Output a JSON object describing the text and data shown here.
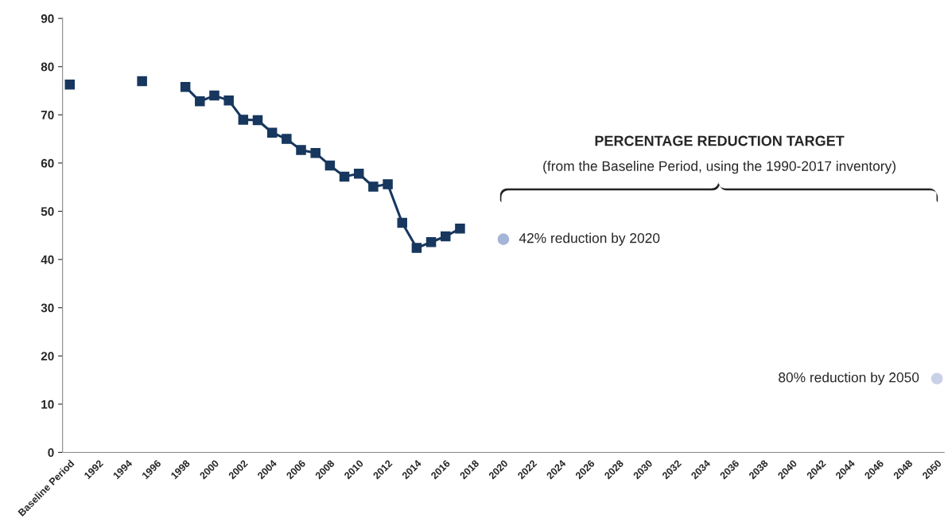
{
  "chart_data": {
    "type": "line",
    "categories": [
      "Baseline Period",
      null,
      "1992",
      null,
      "1994",
      null,
      "1996",
      null,
      "1998",
      null,
      "2000",
      null,
      "2002",
      null,
      "2004",
      null,
      "2006",
      null,
      "2008",
      null,
      "2010",
      null,
      "2012",
      null,
      "2014",
      null,
      "2016",
      null,
      "2018",
      null,
      "2020",
      null,
      "2022",
      null,
      "2024",
      null,
      "2026",
      null,
      "2028",
      null,
      "2030",
      null,
      "2032",
      null,
      "2034",
      null,
      "2036",
      null,
      "2038",
      null,
      "2040",
      null,
      "2042",
      null,
      "2044",
      null,
      "2046",
      null,
      "2048",
      null,
      "2050"
    ],
    "series": [
      {
        "color": "#17375e",
        "marker": "square",
        "values": [
          76.3,
          null,
          null,
          null,
          null,
          77.0,
          null,
          null,
          75.8,
          72.8,
          74.0,
          73.0,
          69.0,
          68.9,
          66.3,
          65.0,
          62.7,
          62.1,
          59.5,
          57.2,
          57.8,
          55.1,
          55.6,
          47.6,
          42.4,
          43.6,
          44.8,
          46.4,
          null,
          null,
          null,
          null,
          null,
          null,
          null,
          null,
          null,
          null,
          null,
          null,
          null,
          null,
          null,
          null,
          null,
          null,
          null,
          null,
          null,
          null,
          null,
          null,
          null,
          null,
          null,
          null,
          null,
          null,
          null,
          null,
          null
        ]
      },
      {
        "type": "scatter",
        "color": "#a5b5d8",
        "marker": "circle",
        "values": [
          null,
          null,
          null,
          null,
          null,
          null,
          null,
          null,
          null,
          null,
          null,
          null,
          null,
          null,
          null,
          null,
          null,
          null,
          null,
          null,
          null,
          null,
          null,
          null,
          null,
          null,
          null,
          null,
          null,
          null,
          44.2,
          null,
          null,
          null,
          null,
          null,
          null,
          null,
          null,
          null,
          null,
          null,
          null,
          null,
          null,
          null,
          null,
          null,
          null,
          null,
          null,
          null,
          null,
          null,
          null,
          null,
          null,
          null,
          null,
          null,
          null
        ]
      },
      {
        "type": "scatter",
        "color": "#c9d1e8",
        "marker": "circle",
        "values": [
          null,
          null,
          null,
          null,
          null,
          null,
          null,
          null,
          null,
          null,
          null,
          null,
          null,
          null,
          null,
          null,
          null,
          null,
          null,
          null,
          null,
          null,
          null,
          null,
          null,
          null,
          null,
          null,
          null,
          null,
          null,
          null,
          null,
          null,
          null,
          null,
          null,
          null,
          null,
          null,
          null,
          null,
          null,
          null,
          null,
          null,
          null,
          null,
          null,
          null,
          null,
          null,
          null,
          null,
          null,
          null,
          null,
          null,
          null,
          null,
          15.3
        ]
      }
    ],
    "ylim": [
      0,
      90
    ],
    "yticks": [
      0,
      10,
      20,
      30,
      40,
      50,
      60,
      70,
      80,
      90
    ],
    "grid": false,
    "annotations": [
      "PERCENTAGE REDUCTION TARGET",
      "(from the Baseline Period, using the 1990-2017 inventory)",
      {
        "text": "42% reduction by 2020",
        "x": "2020",
        "y": 44.2
      },
      {
        "text": "80% reduction by 2050",
        "x": "2050",
        "y": 15.3
      }
    ]
  }
}
